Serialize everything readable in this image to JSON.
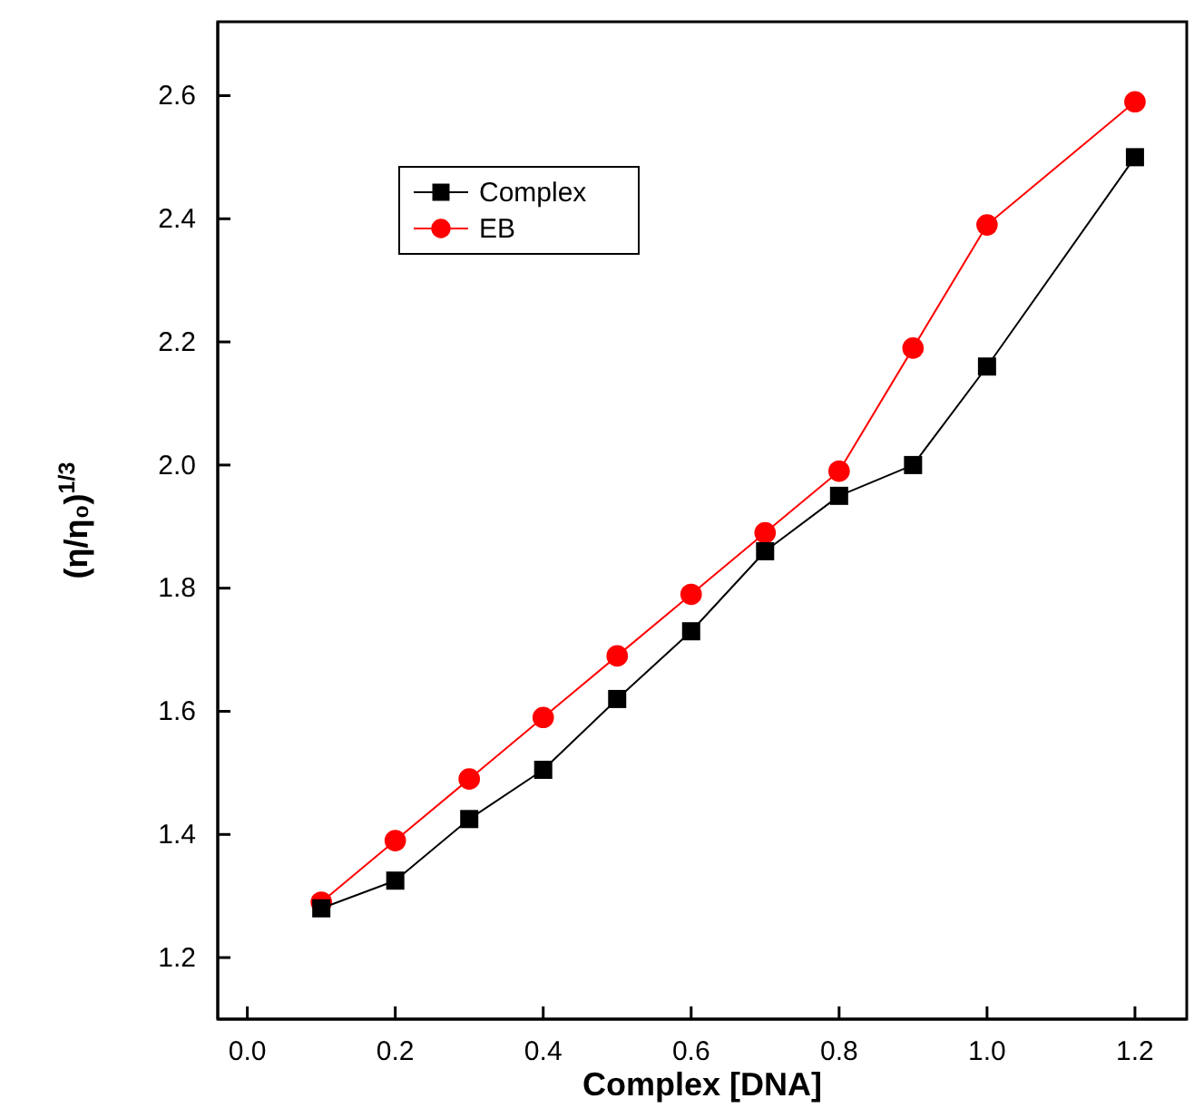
{
  "chart_data": {
    "type": "line",
    "xlabel": "Complex [DNA]",
    "ylabel": "(η/η₀)$^{1/3}$",
    "xlim": [
      -0.04,
      1.27
    ],
    "ylim": [
      1.1,
      2.72
    ],
    "xticks": [
      {
        "value": 0,
        "label": "0.0"
      },
      0.2,
      0.4,
      0.6,
      0.8,
      {
        "value": 1,
        "label": "1.0"
      },
      1.2
    ],
    "yticks": [
      1.2,
      1.4,
      1.6,
      1.8,
      {
        "value": 2,
        "label": "2.0"
      },
      2.2,
      2.4,
      2.6
    ],
    "grid": false,
    "legend": "top left",
    "series": [
      {
        "name": "Complex",
        "color": "#000000",
        "marker": "square",
        "x": [
          0.1,
          0.2,
          0.3,
          0.4,
          0.5,
          0.6,
          0.7,
          0.8,
          0.9,
          1.0,
          1.2
        ],
        "values": [
          1.28,
          1.325,
          1.425,
          1.505,
          1.62,
          1.73,
          1.86,
          1.95,
          2.0,
          2.16,
          2.5
        ]
      },
      {
        "name": "EB",
        "color": "#ff0000",
        "marker": "circle",
        "x": [
          0.1,
          0.2,
          0.3,
          0.4,
          0.5,
          0.6,
          0.7,
          0.8,
          0.9,
          1.0,
          1.2
        ],
        "values": [
          1.29,
          1.39,
          1.49,
          1.59,
          1.69,
          1.79,
          1.89,
          1.99,
          2.19,
          2.39,
          2.59
        ]
      }
    ]
  }
}
